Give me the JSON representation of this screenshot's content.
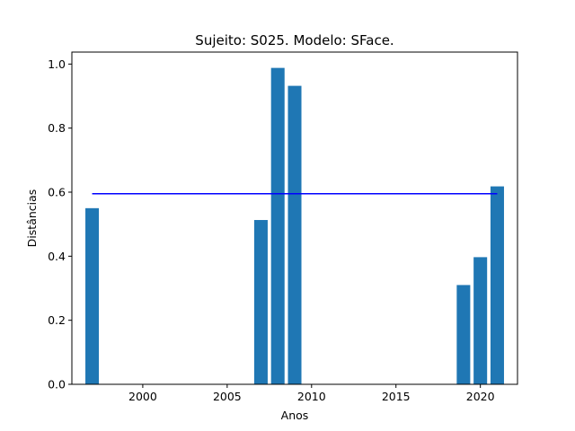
{
  "chart_data": {
    "type": "bar",
    "title": "Sujeito: S025. Modelo: SFace.",
    "xlabel": "Anos",
    "ylabel": "Distâncias",
    "x": [
      1997,
      2007,
      2008,
      2009,
      2019,
      2020,
      2021
    ],
    "values": [
      0.55,
      0.513,
      0.988,
      0.932,
      0.31,
      0.397,
      0.618
    ],
    "bar_width": 0.8,
    "bar_color": "#1f77b4",
    "reference_line": {
      "value": 0.595,
      "x_range": [
        1997,
        2021
      ],
      "color": "#0000ff"
    },
    "xlim": [
      1995.8,
      2022.2
    ],
    "ylim": [
      0,
      1.0374
    ],
    "xticks": [
      2000,
      2005,
      2010,
      2015,
      2020
    ],
    "yticks": [
      0.0,
      0.2,
      0.4,
      0.6,
      0.8,
      1.0
    ],
    "ytick_labels": [
      "0.0",
      "0.2",
      "0.4",
      "0.6",
      "0.8",
      "1.0"
    ],
    "grid": false,
    "legend": "none"
  }
}
